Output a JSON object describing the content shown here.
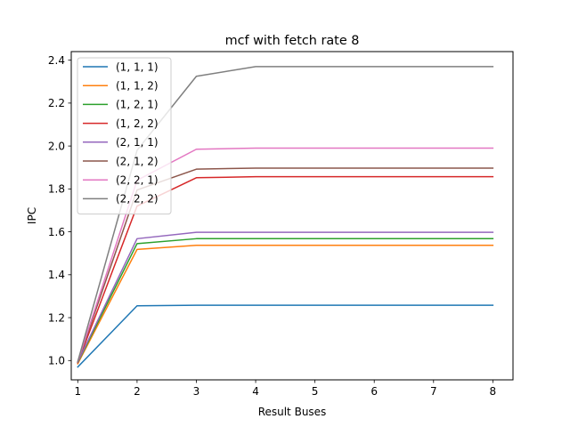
{
  "chart_data": {
    "type": "line",
    "title": "mcf with fetch rate 8",
    "xlabel": "Result Buses",
    "ylabel": "IPC",
    "x": [
      1,
      2,
      3,
      4,
      5,
      6,
      7,
      8
    ],
    "xlim": [
      0.89,
      8.34
    ],
    "ylim": [
      0.91,
      2.44
    ],
    "xticks": [
      1,
      2,
      3,
      4,
      5,
      6,
      7,
      8
    ],
    "yticks": [
      1.0,
      1.2,
      1.4,
      1.6,
      1.8,
      2.0,
      2.2,
      2.4
    ],
    "grid": false,
    "legend_position": "top-left",
    "series": [
      {
        "name": "(1, 1, 1)",
        "color": "#1f77b4",
        "values": [
          0.97,
          1.255,
          1.258,
          1.258,
          1.258,
          1.258,
          1.258,
          1.258
        ]
      },
      {
        "name": "(1, 1, 2)",
        "color": "#ff7f0e",
        "values": [
          0.985,
          1.518,
          1.537,
          1.537,
          1.537,
          1.537,
          1.537,
          1.537
        ]
      },
      {
        "name": "(1, 2, 1)",
        "color": "#2ca02c",
        "values": [
          0.99,
          1.545,
          1.568,
          1.568,
          1.568,
          1.568,
          1.568,
          1.568
        ]
      },
      {
        "name": "(1, 2, 2)",
        "color": "#d62728",
        "values": [
          0.99,
          1.72,
          1.852,
          1.857,
          1.857,
          1.857,
          1.857,
          1.857
        ]
      },
      {
        "name": "(2, 1, 1)",
        "color": "#9467bd",
        "values": [
          0.993,
          1.568,
          1.598,
          1.598,
          1.598,
          1.598,
          1.598,
          1.598
        ]
      },
      {
        "name": "(2, 1, 2)",
        "color": "#8c564b",
        "values": [
          0.993,
          1.795,
          1.892,
          1.897,
          1.897,
          1.897,
          1.897,
          1.897
        ]
      },
      {
        "name": "(2, 2, 1)",
        "color": "#e377c2",
        "values": [
          0.995,
          1.84,
          1.985,
          1.99,
          1.99,
          1.99,
          1.99,
          1.99
        ]
      },
      {
        "name": "(2, 2, 2)",
        "color": "#7f7f7f",
        "values": [
          0.995,
          1.98,
          2.325,
          2.37,
          2.37,
          2.37,
          2.37,
          2.37
        ]
      }
    ]
  }
}
